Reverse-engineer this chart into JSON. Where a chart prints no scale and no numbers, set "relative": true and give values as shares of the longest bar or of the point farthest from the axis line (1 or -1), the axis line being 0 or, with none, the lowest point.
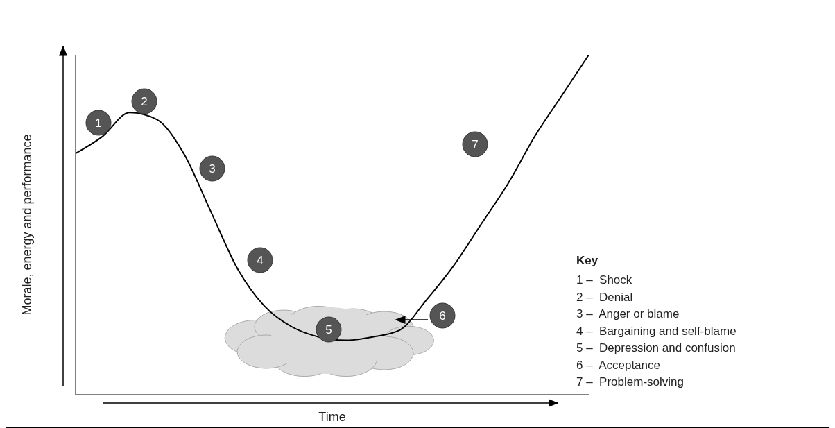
{
  "chart_data": {
    "type": "line",
    "relative": true,
    "xlabel": "Time",
    "ylabel": "Morale, energy and performance",
    "categories": [
      null,
      null,
      null,
      null,
      null,
      null,
      null,
      null,
      null,
      null,
      null,
      null,
      null,
      null,
      null,
      null,
      null,
      null,
      null,
      null
    ],
    "series": [
      {
        "color": "#000000",
        "values": [
          0.71,
          0.76,
          0.83,
          0.81,
          0.71,
          0.54,
          0.37,
          0.26,
          0.2,
          0.17,
          0.16,
          0.17,
          0.19,
          0.28,
          0.38,
          0.5,
          0.62,
          0.76,
          0.88,
          1
        ]
      }
    ],
    "marker": "none",
    "line_style": "solid",
    "annotations": [
      "1",
      "2",
      "3",
      "4",
      "5",
      "6",
      "7",
      "Key",
      "1 –  Shock",
      "2 –  Denial",
      "3 –  Anger or blame",
      "4 –  Bargaining and self-blame",
      "5 –  Depression and confusion",
      "6 –  Acceptance",
      "7 –  Problem-solving"
    ]
  }
}
